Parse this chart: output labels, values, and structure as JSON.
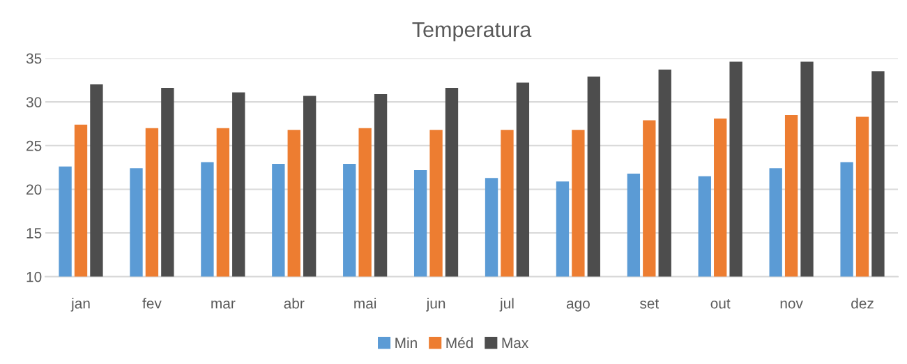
{
  "chart_data": {
    "type": "bar",
    "title": "Temperatura",
    "categories": [
      "jan",
      "fev",
      "mar",
      "abr",
      "mai",
      "jun",
      "jul",
      "ago",
      "set",
      "out",
      "nov",
      "dez"
    ],
    "series": [
      {
        "name": "Min",
        "color": "#5b9bd5",
        "values": [
          22.6,
          22.4,
          23.1,
          22.9,
          22.9,
          22.2,
          21.3,
          20.9,
          21.8,
          21.5,
          22.4,
          23.1
        ]
      },
      {
        "name": "Méd",
        "color": "#ed7d31",
        "values": [
          27.4,
          27.0,
          27.0,
          26.8,
          27.0,
          26.8,
          26.8,
          26.8,
          27.9,
          28.1,
          28.5,
          28.3
        ]
      },
      {
        "name": "Max",
        "color": "#4d4d4d",
        "values": [
          32.0,
          31.6,
          31.1,
          30.7,
          30.9,
          31.6,
          32.2,
          32.9,
          33.7,
          34.6,
          34.6,
          33.5
        ]
      }
    ],
    "ylim": [
      10,
      35
    ],
    "yticks": [
      10,
      15,
      20,
      25,
      30,
      35
    ],
    "grid": "y",
    "legend": "bottom"
  }
}
